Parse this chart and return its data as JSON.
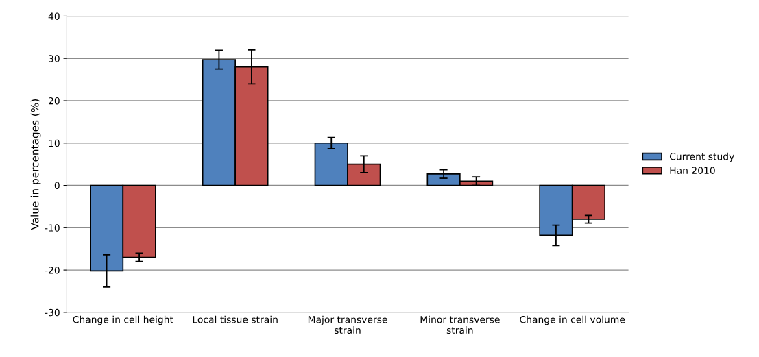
{
  "chart_data": {
    "type": "bar",
    "ylabel": "Value in percentages (%)",
    "categories": [
      "Change in cell height",
      "Local tissue strain",
      "Major transverse\nstrain",
      "Minor transverse\nstrain",
      "Change in cell volume"
    ],
    "series": [
      {
        "name": "Current study",
        "color": "#4f81bd",
        "values": [
          -20.2,
          29.7,
          10,
          2.7,
          -11.8
        ],
        "errors": [
          3.8,
          2.2,
          1.3,
          1,
          2.4
        ]
      },
      {
        "name": "Han 2010",
        "color": "#c0504d",
        "values": [
          -17,
          28,
          5,
          1,
          -8
        ],
        "errors": [
          1,
          4,
          2,
          1,
          0.9
        ]
      }
    ],
    "ylim": [
      -30,
      40
    ],
    "yticks": [
      -30,
      -20,
      -10,
      0,
      10,
      20,
      30,
      40
    ],
    "grid": "y",
    "legend": "right"
  }
}
